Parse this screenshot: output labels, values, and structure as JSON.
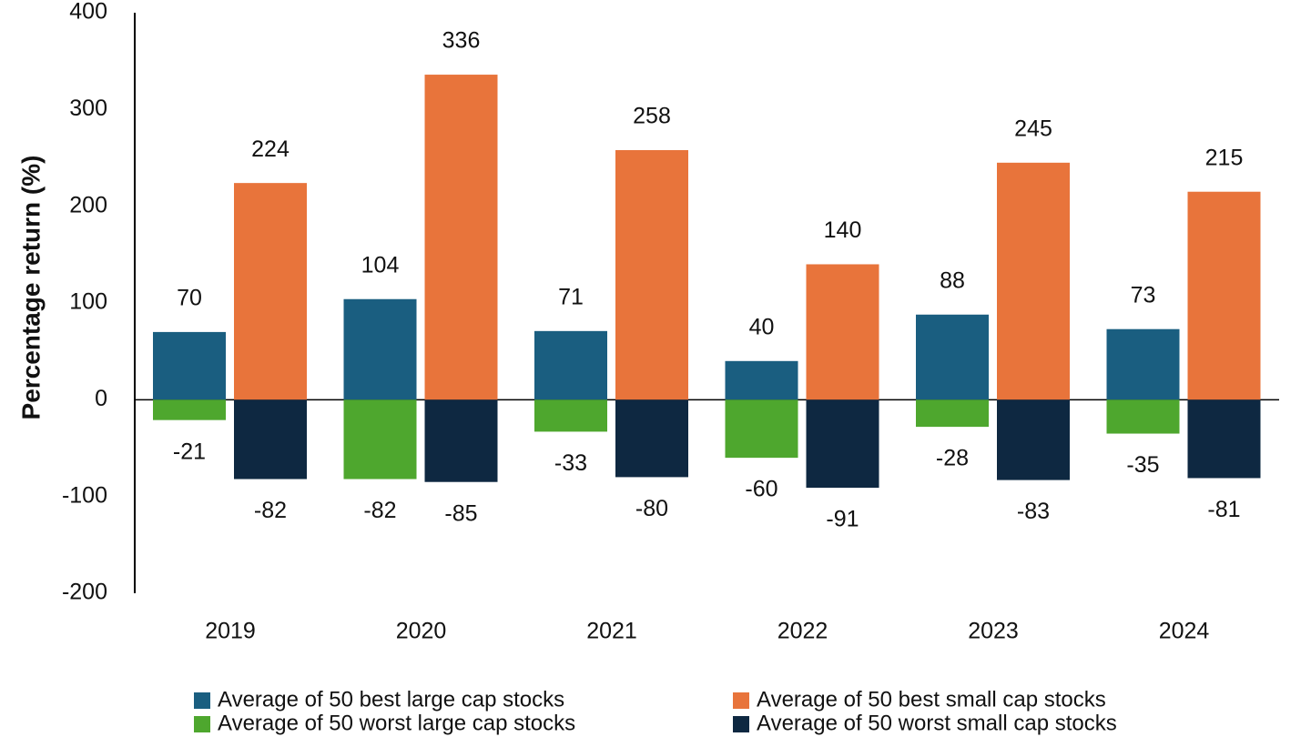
{
  "chart_data": {
    "type": "bar",
    "y_label": "Percentage return (%)",
    "categories": [
      "2019",
      "2020",
      "2021",
      "2022",
      "2023",
      "2024"
    ],
    "series": [
      {
        "name": "Average of 50 best large cap stocks",
        "color": "#1a5e80",
        "values": [
          70,
          104,
          71,
          40,
          88,
          73
        ]
      },
      {
        "name": "Average of 50 best small cap stocks",
        "color": "#e8743b",
        "values": [
          224,
          336,
          258,
          140,
          245,
          215
        ]
      },
      {
        "name": "Average of 50 worst large cap stocks",
        "color": "#4ea72e",
        "values": [
          -21,
          -82,
          -33,
          -60,
          -28,
          -35
        ]
      },
      {
        "name": "Average of 50 worst small cap stocks",
        "color": "#0e2841",
        "values": [
          -82,
          -85,
          -80,
          -91,
          -83,
          -81
        ]
      }
    ],
    "ylim": [
      -200,
      400
    ],
    "yticks": [
      -200,
      -100,
      0,
      100,
      200,
      300,
      400
    ],
    "grid": false
  }
}
